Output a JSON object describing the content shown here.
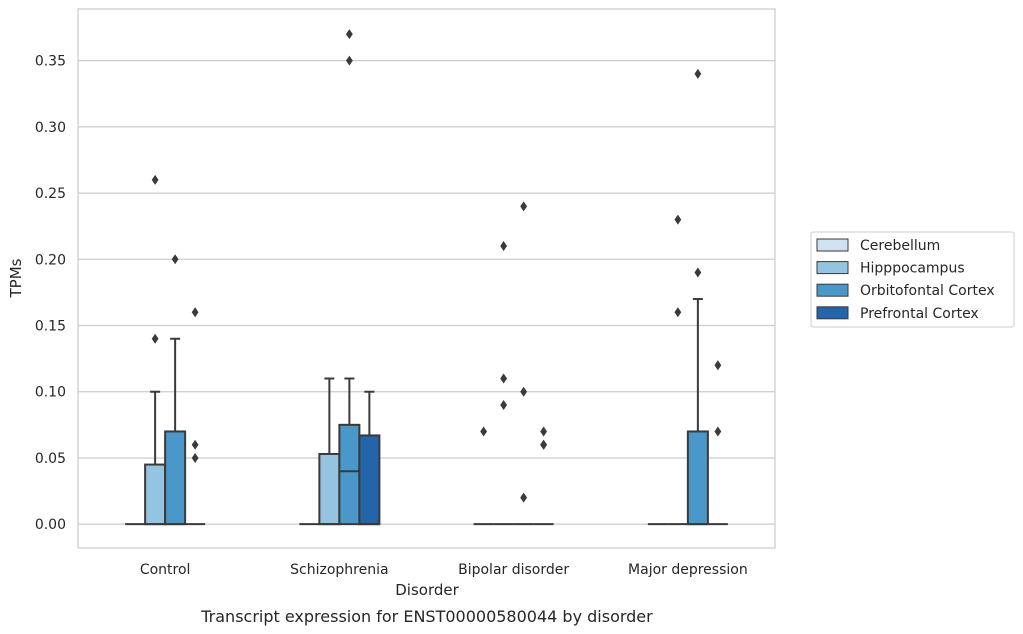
{
  "chart_data": {
    "type": "box",
    "title": "",
    "caption": "Transcript expression for ENST00000580044 by disorder",
    "xlabel": "Disorder",
    "ylabel": "TPMs",
    "ylim": [
      -0.018,
      0.389
    ],
    "yticks": [
      "0.00",
      "0.05",
      "0.10",
      "0.15",
      "0.20",
      "0.25",
      "0.30",
      "0.35"
    ],
    "grid": true,
    "legend_position": "right",
    "categories": [
      "Control",
      "Schizophrenia",
      "Bipolar disorder",
      "Major depression"
    ],
    "series": [
      {
        "name": "Cerebellum",
        "color": "#d0e1f2",
        "boxes": [
          {
            "q1": 0,
            "median": 0,
            "q3": 0,
            "whisker_low": 0,
            "whisker_high": 0,
            "outliers": []
          },
          {
            "q1": 0,
            "median": 0,
            "q3": 0,
            "whisker_low": 0,
            "whisker_high": 0,
            "outliers": []
          },
          {
            "q1": 0,
            "median": 0,
            "q3": 0,
            "whisker_low": 0,
            "whisker_high": 0,
            "outliers": [
              0.07
            ]
          },
          {
            "q1": 0,
            "median": 0,
            "q3": 0,
            "whisker_low": 0,
            "whisker_high": 0,
            "outliers": []
          }
        ]
      },
      {
        "name": "Hipppocampus",
        "color": "#94c4df",
        "boxes": [
          {
            "q1": 0,
            "median": 0,
            "q3": 0.045,
            "whisker_low": 0,
            "whisker_high": 0.1,
            "outliers": [
              0.14,
              0.26
            ]
          },
          {
            "q1": 0,
            "median": 0,
            "q3": 0.053,
            "whisker_low": 0,
            "whisker_high": 0.11,
            "outliers": []
          },
          {
            "q1": 0,
            "median": 0,
            "q3": 0,
            "whisker_low": 0,
            "whisker_high": 0,
            "outliers": [
              0.09,
              0.11,
              0.21
            ]
          },
          {
            "q1": 0,
            "median": 0,
            "q3": 0,
            "whisker_low": 0,
            "whisker_high": 0,
            "outliers": [
              0.16,
              0.23
            ]
          }
        ]
      },
      {
        "name": "Orbitofontal Cortex",
        "color": "#4a98c9",
        "boxes": [
          {
            "q1": 0,
            "median": 0,
            "q3": 0.07,
            "whisker_low": 0,
            "whisker_high": 0.14,
            "outliers": [
              0.2
            ]
          },
          {
            "q1": 0,
            "median": 0.04,
            "q3": 0.075,
            "whisker_low": 0,
            "whisker_high": 0.11,
            "outliers": [
              0.35,
              0.37
            ]
          },
          {
            "q1": 0,
            "median": 0,
            "q3": 0,
            "whisker_low": 0,
            "whisker_high": 0,
            "outliers": [
              0.02,
              0.1,
              0.24
            ]
          },
          {
            "q1": 0,
            "median": 0,
            "q3": 0.07,
            "whisker_low": 0,
            "whisker_high": 0.17,
            "outliers": [
              0.19,
              0.34
            ]
          }
        ]
      },
      {
        "name": "Prefrontal Cortex",
        "color": "#2464ab",
        "boxes": [
          {
            "q1": 0,
            "median": 0,
            "q3": 0,
            "whisker_low": 0,
            "whisker_high": 0,
            "outliers": [
              0.05,
              0.06,
              0.16
            ]
          },
          {
            "q1": 0,
            "median": 0,
            "q3": 0.067,
            "whisker_low": 0,
            "whisker_high": 0.1,
            "outliers": []
          },
          {
            "q1": 0,
            "median": 0,
            "q3": 0,
            "whisker_low": 0,
            "whisker_high": 0,
            "outliers": [
              0.06,
              0.06,
              0.07
            ]
          },
          {
            "q1": 0,
            "median": 0,
            "q3": 0,
            "whisker_low": 0,
            "whisker_high": 0,
            "outliers": [
              0.07,
              0.12
            ]
          }
        ]
      }
    ]
  }
}
